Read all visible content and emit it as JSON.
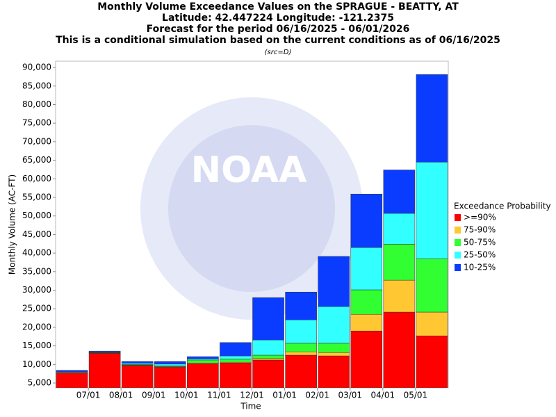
{
  "chart_data": {
    "type": "stacked-bar",
    "title": [
      "Monthly Volume Exceedance Values on the SPRAGUE - BEATTY, AT",
      "Latitude: 42.447224 Longitude: -121.2375",
      "Forecast for the period 06/16/2025 - 06/01/2026",
      "This is a conditional simulation based on the current conditions as of 06/16/2025"
    ],
    "note": "(src=D)",
    "watermark": "NOAA",
    "x_label": "Time",
    "y_label": "Monthly Volume (AC-FT)",
    "legend_title": "Exceedance Probability",
    "categories": [
      null,
      "07/01",
      "08/01",
      "09/01",
      "10/01",
      "11/01",
      "12/01",
      "01/01",
      "02/01",
      "03/01",
      "04/01",
      "05/01"
    ],
    "series": [
      {
        "name": ">=90%",
        "color": "#ff0000",
        "values": [
          7700,
          13000,
          9700,
          9300,
          10200,
          10400,
          11200,
          12500,
          12300,
          19000,
          24100,
          17700
        ]
      },
      {
        "name": "75-90%",
        "color": "#ffc832",
        "values": [
          50,
          100,
          100,
          100,
          200,
          200,
          400,
          900,
          900,
          4500,
          8600,
          6400
        ]
      },
      {
        "name": "50-75%",
        "color": "#32ff32",
        "values": [
          50,
          100,
          200,
          200,
          800,
          800,
          900,
          2300,
          2500,
          6600,
          9700,
          14400
        ]
      },
      {
        "name": "25-50%",
        "color": "#32ffff",
        "values": [
          200,
          150,
          300,
          500,
          300,
          900,
          4100,
          6300,
          9900,
          11400,
          8300,
          26000
        ]
      },
      {
        "name": "10-25%",
        "color": "#0a3cff",
        "values": [
          400,
          250,
          500,
          700,
          600,
          3600,
          11400,
          7500,
          13500,
          14400,
          11700,
          23600
        ]
      }
    ],
    "ylim": [
      3700,
      91700
    ],
    "yticks": [
      {
        "value": 5000,
        "label": "5,000"
      },
      {
        "value": 10000,
        "label": "10,000"
      },
      {
        "value": 15000,
        "label": "15,000"
      },
      {
        "value": 20000,
        "label": "20,000"
      },
      {
        "value": 25000,
        "label": "25,000"
      },
      {
        "value": 30000,
        "label": "30,000"
      },
      {
        "value": 35000,
        "label": "35,000"
      },
      {
        "value": 40000,
        "label": "40,000"
      },
      {
        "value": 45000,
        "label": "45,000"
      },
      {
        "value": 50000,
        "label": "50,000"
      },
      {
        "value": 55000,
        "label": "55,000"
      },
      {
        "value": 60000,
        "label": "60,000"
      },
      {
        "value": 65000,
        "label": "65,000"
      },
      {
        "value": 70000,
        "label": "70,000"
      },
      {
        "value": 75000,
        "label": "75,000"
      },
      {
        "value": 80000,
        "label": "80,000"
      },
      {
        "value": 85000,
        "label": "85,000"
      },
      {
        "value": 90000,
        "label": "90,000"
      }
    ],
    "grid": false
  }
}
